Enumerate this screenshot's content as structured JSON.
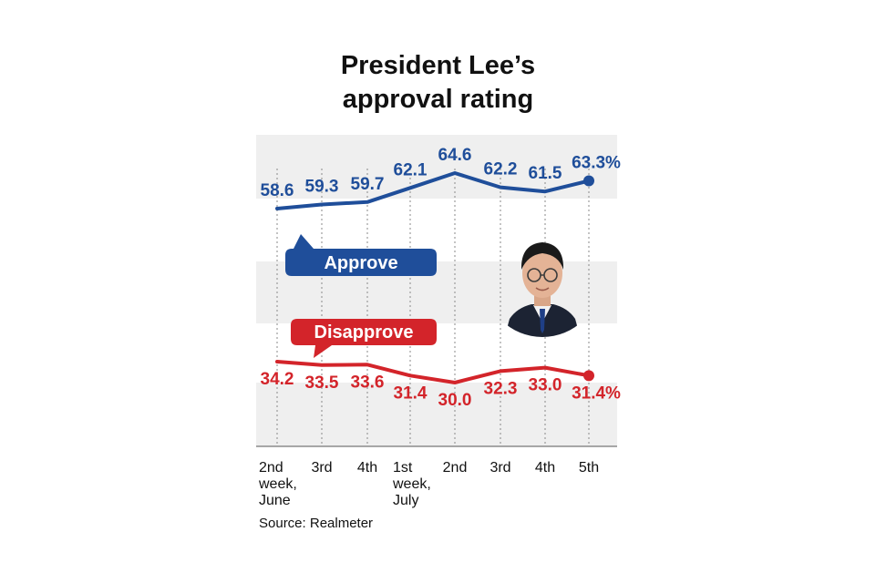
{
  "title_line1": "President Lee’s",
  "title_line2": "approval rating",
  "source": "Source: Realmeter",
  "chart_data": {
    "type": "line",
    "title": "President Lee’s approval rating",
    "categories": [
      [
        "2nd",
        "week,",
        "June"
      ],
      [
        "3rd"
      ],
      [
        "4th"
      ],
      [
        "1st",
        "week,",
        "July"
      ],
      [
        "2nd"
      ],
      [
        "3rd"
      ],
      [
        "4th"
      ],
      [
        "5th"
      ]
    ],
    "series": [
      {
        "name": "Approve",
        "color": "#1f4e9a",
        "values": [
          58.6,
          59.3,
          59.7,
          62.1,
          64.6,
          62.2,
          61.5,
          63.3
        ],
        "labels": [
          "58.6",
          "59.3",
          "59.7",
          "62.1",
          "64.6",
          "62.2",
          "61.5",
          "63.3%"
        ]
      },
      {
        "name": "Disapprove",
        "color": "#d3242a",
        "values": [
          34.2,
          33.5,
          33.6,
          31.4,
          30.0,
          32.3,
          33.0,
          31.4
        ],
        "labels": [
          "34.2",
          "33.5",
          "33.6",
          "31.4",
          "30.0",
          "32.3",
          "33.0",
          "31.4%"
        ]
      }
    ],
    "grid": "dotted vertical",
    "background": "alternating gray bands",
    "legend": "callout bubbles"
  }
}
